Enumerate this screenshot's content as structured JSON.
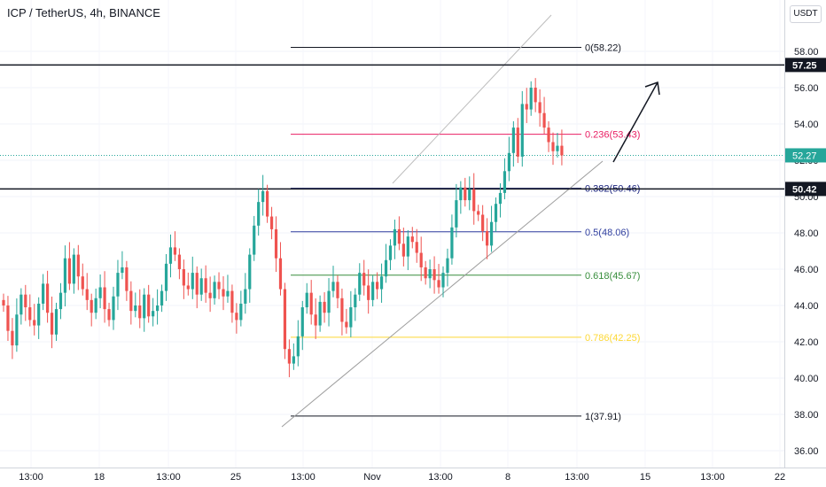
{
  "header": {
    "title": "ICP / TetherUS, 4h, BINANCE"
  },
  "axis": {
    "currency": "USDT"
  },
  "chart_data": {
    "type": "candlestick",
    "y_ticks": [
      "36.00",
      "38.00",
      "40.00",
      "42.00",
      "44.00",
      "46.00",
      "48.00",
      "50.00",
      "52.00",
      "54.00",
      "56.00",
      "58.00"
    ],
    "x_ticks": [
      "13:00",
      "18",
      "13:00",
      "25",
      "13:00",
      "Nov",
      "13:00",
      "8",
      "13:00",
      "15",
      "13:00",
      "22"
    ],
    "ylim": [
      35.5,
      60.5
    ],
    "fib_levels": [
      {
        "label": "0(58.22)",
        "value": 58.22,
        "color": "#131722"
      },
      {
        "label": "0.236(53.43)",
        "value": 53.43,
        "color": "#e91e63"
      },
      {
        "label": "0.382(50.46)",
        "value": 50.46,
        "color": "#1a237e"
      },
      {
        "label": "0.5(48.06)",
        "value": 48.06,
        "color": "#303f9f"
      },
      {
        "label": "0.618(45.67)",
        "value": 45.67,
        "color": "#388e3c"
      },
      {
        "label": "0.786(42.25)",
        "value": 42.25,
        "color": "#fdd835"
      },
      {
        "label": "1(37.91)",
        "value": 37.91,
        "color": "#131722"
      }
    ],
    "horizontal_lines": [
      {
        "value": 57.25,
        "label": "57.25",
        "style": "solid"
      },
      {
        "value": 50.42,
        "label": "50.42",
        "style": "solid"
      }
    ],
    "last_price": {
      "value": 52.27,
      "label": "52.27",
      "color": "#26a69a"
    },
    "colors": {
      "up": "#26a69a",
      "down": "#ef5350"
    },
    "closes": [
      44.0,
      42.6,
      41.8,
      43.5,
      44.6,
      43.9,
      43.2,
      42.9,
      44.1,
      45.2,
      43.6,
      42.4,
      43.8,
      44.7,
      46.6,
      45.2,
      46.8,
      45.6,
      44.9,
      44.3,
      43.6,
      44.4,
      45.0,
      43.8,
      43.2,
      44.5,
      45.8,
      46.1,
      44.8,
      43.7,
      44.0,
      43.3,
      44.6,
      43.4,
      43.7,
      44.0,
      44.8,
      46.3,
      47.2,
      46.8,
      46.0,
      45.1,
      44.9,
      45.8,
      44.6,
      45.5,
      44.7,
      44.4,
      45.3,
      44.9,
      44.5,
      44.8,
      43.6,
      43.2,
      44.1,
      44.9,
      46.8,
      48.4,
      49.7,
      50.3,
      48.9,
      48.2,
      46.6,
      44.9,
      41.6,
      40.8,
      41.2,
      42.3,
      43.9,
      44.7,
      43.5,
      42.9,
      44.2,
      43.6,
      44.8,
      45.3,
      44.4,
      43.1,
      42.8,
      43.9,
      44.6,
      45.8,
      45.1,
      44.3,
      45.3,
      44.9,
      45.6,
      46.5,
      47.3,
      48.2,
      47.4,
      46.7,
      47.8,
      47.5,
      46.9,
      46.1,
      45.5,
      46.0,
      45.4,
      45.0,
      45.8,
      46.6,
      48.3,
      49.8,
      50.5,
      49.8,
      50.4,
      49.2,
      49.0,
      48.1,
      47.3,
      48.6,
      49.6,
      50.2,
      51.4,
      52.4,
      53.8,
      52.2,
      55.1,
      54.8,
      56.0,
      55.2,
      54.6,
      53.8,
      53.0,
      52.5,
      52.8,
      52.27
    ]
  }
}
